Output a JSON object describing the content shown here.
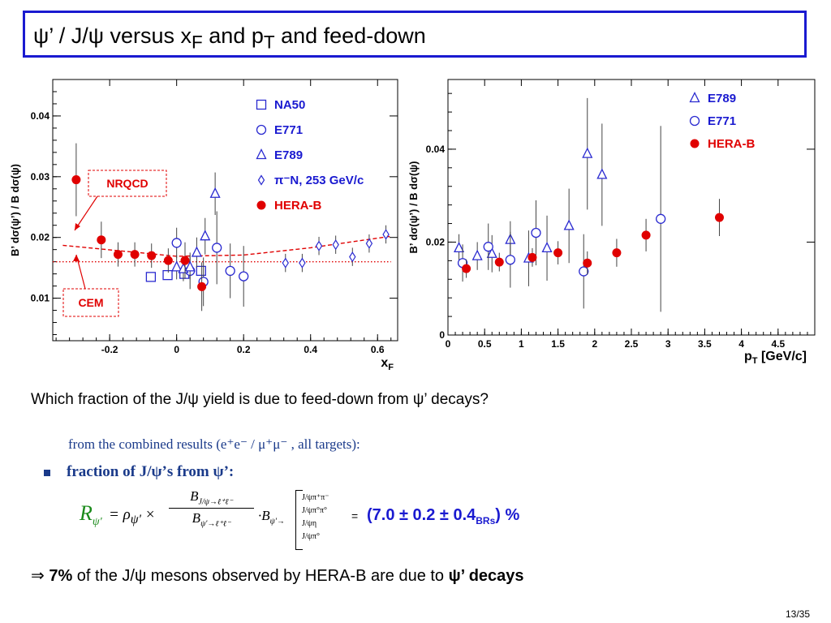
{
  "slide": {
    "title_psi1": "ψ’ / J/ψ versus x",
    "title_sub_F": "F",
    "title_and1": " and p",
    "title_sub_T": "T",
    "title_rest": " and feed-down",
    "question": "Which fraction of the J/ψ yield is due to feed-down from ψ’ decays?",
    "combined": "from the combined results (e⁺e⁻ / μ⁺μ⁻ , all targets):",
    "bullet": "fraction of J/ψ’s from ψ’:",
    "formula": {
      "R": "R",
      "R_sub": "ψ'",
      "rho": "= ρ",
      "rho_sub": "ψ'",
      "times": " ×",
      "num": "B",
      "num_sub": "J/ψ→ℓ⁺ℓ⁻",
      "den": "B",
      "den_sub": "ψ'→ℓ⁺ℓ⁻",
      "dot_b": "·B",
      "dot_b_sub": "ψ'→",
      "modes": [
        "J/ψπ⁺π⁻",
        "J/ψπ°π°",
        "J/ψη",
        "J/ψπ°"
      ],
      "equals": "=",
      "result": "(7.0 ± 0.2 ± 0.4",
      "result_sub": "BRs",
      "result_end": ") %"
    },
    "conclusion_arrow": "⇒",
    "conclusion_pct": "7%",
    "conclusion_mid": " of the J/ψ mesons observed by HERA-B are due to ",
    "conclusion_end": "ψ’ decays",
    "page": "13/35"
  },
  "colors": {
    "title_border": "#1a1ad0",
    "marker_blue": "#2a2ad0",
    "hera_red": "#e00000",
    "model_red": "#e00000",
    "legend_text": "#1a1ad0",
    "formula_green": "#1a8a1a",
    "formula_blue_text": "#1a3a8a"
  },
  "chart_data": [
    {
      "type": "scatter",
      "ylabel": "B’ dσ(ψ’) / B dσ(ψ)",
      "xlabel_main": "x",
      "xlabel_sub": "F",
      "xlim": [
        -0.37,
        0.66
      ],
      "ylim": [
        0.003,
        0.046
      ],
      "xticks": [
        -0.2,
        0,
        0.2,
        0.4,
        0.6
      ],
      "xtick_labels": [
        "-0.2",
        "0",
        "0.2",
        "0.4",
        "0.6"
      ],
      "yticks": [
        0.01,
        0.02,
        0.03,
        0.04
      ],
      "ytick_labels": [
        "0.01",
        "0.02",
        "0.03",
        "0.04"
      ],
      "legend_placement": "top-right",
      "annotations": [
        {
          "name": "nrqcd-label",
          "text": "NRQCD"
        },
        {
          "name": "cem-label",
          "text": "CEM"
        }
      ],
      "curves": [
        {
          "name": "NRQCD",
          "style": "dashed",
          "x": [
            -0.34,
            0.0,
            0.2,
            0.4,
            0.64
          ],
          "y": [
            0.0187,
            0.0169,
            0.0171,
            0.0183,
            0.0202
          ]
        },
        {
          "name": "CEM",
          "style": "dotted",
          "x": [
            -0.37,
            0.64
          ],
          "y": [
            0.016,
            0.016
          ]
        }
      ],
      "series": [
        {
          "name": "NA50",
          "marker": "square",
          "x": [
            -0.077,
            -0.027,
            0.023,
            0.073
          ],
          "y": [
            0.0135,
            0.0138,
            0.014,
            0.0145
          ],
          "err": [
            0.0,
            0.0,
            0.0,
            0.0
          ]
        },
        {
          "name": "E771",
          "marker": "circle",
          "x": [
            0.0,
            0.04,
            0.08,
            0.12,
            0.16,
            0.2
          ],
          "y": [
            0.0191,
            0.0145,
            0.0127,
            0.0183,
            0.0145,
            0.0136
          ],
          "err": [
            0.0025,
            0.003,
            0.004,
            0.006,
            0.0045,
            0.005
          ]
        },
        {
          "name": "E789",
          "marker": "triangle",
          "x": [
            0.0,
            0.02,
            0.04,
            0.06,
            0.085,
            0.115
          ],
          "y": [
            0.0151,
            0.0148,
            0.0151,
            0.0175,
            0.0202,
            0.0272
          ],
          "err": [
            0.002,
            0.002,
            0.002,
            0.0025,
            0.003,
            0.0035
          ]
        },
        {
          "name": "π⁻N, 253 GeV/c",
          "marker": "diamond",
          "x": [
            0.325,
            0.375,
            0.425,
            0.475,
            0.525,
            0.575,
            0.625
          ],
          "y": [
            0.0158,
            0.0158,
            0.0186,
            0.0188,
            0.0168,
            0.019,
            0.0205
          ],
          "err": [
            0.0015,
            0.0015,
            0.0015,
            0.0015,
            0.0015,
            0.0015,
            0.0015
          ]
        },
        {
          "name": "HERA-B",
          "marker": "filled-circle",
          "x": [
            -0.3,
            -0.225,
            -0.175,
            -0.125,
            -0.075,
            -0.025,
            0.025,
            0.075
          ],
          "y": [
            0.0295,
            0.0196,
            0.0172,
            0.0172,
            0.017,
            0.0162,
            0.0162,
            0.0119
          ],
          "err": [
            0.006,
            0.003,
            0.002,
            0.002,
            0.002,
            0.002,
            0.003,
            0.004
          ]
        }
      ]
    },
    {
      "type": "scatter",
      "ylabel": "B’ dσ(ψ’) / B dσ(ψ)",
      "xlabel_main": "p",
      "xlabel_sub": "T",
      "xlabel_unit": " [GeV/c]",
      "xlim": [
        0,
        5.0
      ],
      "ylim": [
        0,
        0.055
      ],
      "xticks": [
        0,
        0.5,
        1,
        1.5,
        2,
        2.5,
        3,
        3.5,
        4,
        4.5
      ],
      "xtick_labels": [
        "0",
        "0.5",
        "1",
        "1.5",
        "2",
        "2.5",
        "3",
        "3.5",
        "4",
        "4.5"
      ],
      "yticks": [
        0,
        0.02,
        0.04
      ],
      "ytick_labels": [
        "0",
        "0.02",
        "0.04"
      ],
      "legend_placement": "top-right",
      "series": [
        {
          "name": "E789",
          "marker": "triangle",
          "x": [
            0.15,
            0.4,
            0.6,
            0.85,
            1.1,
            1.35,
            1.65,
            1.9,
            2.1
          ],
          "y": [
            0.0187,
            0.017,
            0.0175,
            0.0205,
            0.0165,
            0.0187,
            0.0235,
            0.039,
            0.0345
          ],
          "err": [
            0.003,
            0.003,
            0.004,
            0.004,
            0.006,
            0.007,
            0.008,
            0.012,
            0.011
          ]
        },
        {
          "name": "E771",
          "marker": "circle",
          "x": [
            0.2,
            0.55,
            0.85,
            1.2,
            1.85,
            2.9
          ],
          "y": [
            0.0155,
            0.019,
            0.0162,
            0.022,
            0.0137,
            0.025
          ],
          "err": [
            0.004,
            0.005,
            0.006,
            0.007,
            0.008,
            0.02
          ]
        },
        {
          "name": "HERA-B",
          "marker": "filled-circle",
          "x": [
            0.25,
            0.7,
            1.15,
            1.5,
            1.9,
            2.3,
            2.7,
            3.7
          ],
          "y": [
            0.0143,
            0.0157,
            0.0167,
            0.0177,
            0.0155,
            0.0177,
            0.0215,
            0.0253
          ],
          "err": [
            0.002,
            0.002,
            0.002,
            0.0025,
            0.0025,
            0.003,
            0.0035,
            0.004
          ]
        }
      ]
    }
  ]
}
